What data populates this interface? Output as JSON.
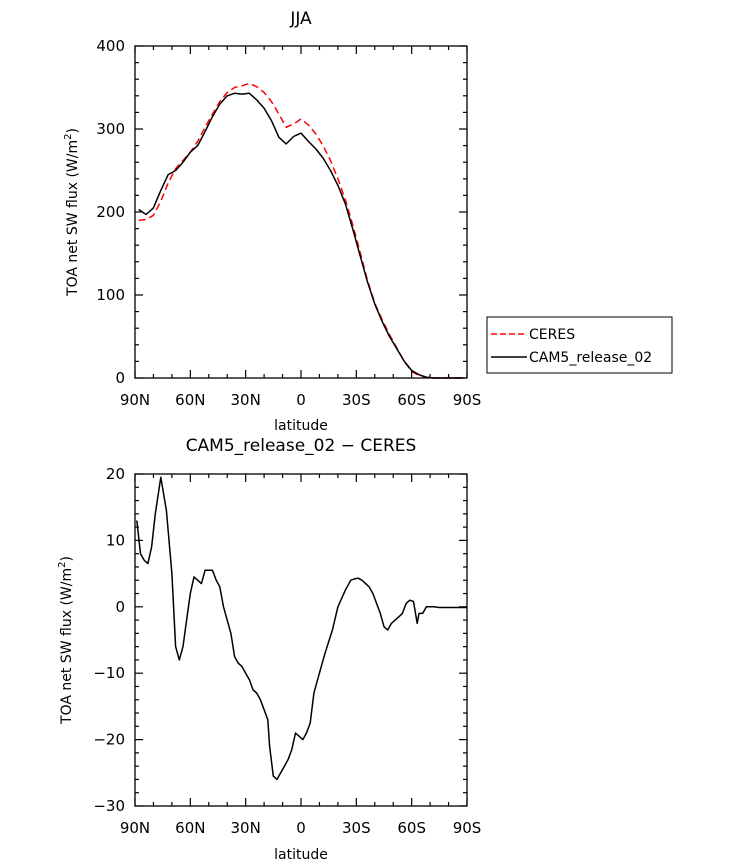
{
  "chart_data": [
    {
      "type": "line",
      "title": "JJA",
      "xlabel": "latitude",
      "ylabel_main": "TOA net SW flux (W/m",
      "ylabel_sup": "2",
      "ylabel_tail": ")",
      "xlim": [
        90,
        -90
      ],
      "ylim": [
        0,
        400
      ],
      "xticks": [
        90,
        60,
        30,
        0,
        -30,
        -60,
        -90
      ],
      "xtick_labels": [
        "90N",
        "60N",
        "30N",
        "0",
        "30S",
        "60S",
        "90S"
      ],
      "yticks": [
        0,
        100,
        200,
        300,
        400
      ],
      "ytick_labels": [
        "0",
        "100",
        "200",
        "300",
        "400"
      ],
      "legend": {
        "placement": "right",
        "entries": [
          {
            "label": "CERES",
            "color": "#ff0000",
            "dash": "dashed"
          },
          {
            "label": "CAM5_release_02",
            "color": "#000000",
            "dash": "solid"
          }
        ]
      },
      "series": [
        {
          "name": "CERES",
          "color": "#ff0000",
          "dash": "dashed",
          "x": [
            88,
            84,
            80,
            76,
            72,
            68,
            64,
            60,
            56,
            52,
            48,
            44,
            40,
            36,
            32,
            28,
            24,
            20,
            16,
            12,
            8,
            4,
            0,
            -4,
            -8,
            -12,
            -16,
            -20,
            -24,
            -28,
            -32,
            -36,
            -40,
            -44,
            -48,
            -52,
            -56,
            -60,
            -64,
            -68,
            -72,
            -76,
            -80,
            -84,
            -88
          ],
          "y": [
            190,
            191,
            196,
            213,
            235,
            252,
            262,
            272,
            285,
            302,
            318,
            333,
            344,
            350,
            352,
            355,
            351,
            344,
            333,
            318,
            302,
            306,
            312,
            305,
            294,
            280,
            262,
            240,
            215,
            185,
            152,
            118,
            90,
            70,
            52,
            36,
            20,
            8,
            3,
            1,
            0,
            0,
            0,
            0,
            0
          ]
        },
        {
          "name": "CAM5_release_02",
          "color": "#000000",
          "dash": "solid",
          "x": [
            88,
            84,
            80,
            76,
            72,
            68,
            64,
            60,
            56,
            52,
            48,
            44,
            40,
            36,
            32,
            28,
            24,
            20,
            16,
            12,
            8,
            4,
            0,
            -4,
            -8,
            -12,
            -16,
            -20,
            -24,
            -28,
            -32,
            -36,
            -40,
            -44,
            -48,
            -52,
            -56,
            -60,
            -64,
            -68,
            -72,
            -76,
            -80,
            -84,
            -88
          ],
          "y": [
            203,
            197,
            205,
            226,
            245,
            250,
            260,
            272,
            280,
            297,
            315,
            330,
            340,
            343,
            342,
            343,
            335,
            325,
            310,
            290,
            282,
            291,
            295,
            285,
            276,
            265,
            250,
            232,
            210,
            180,
            148,
            116,
            89,
            68,
            50,
            35,
            20,
            9,
            4,
            1,
            0,
            0,
            0,
            0,
            0
          ]
        }
      ]
    },
    {
      "type": "line",
      "title": "CAM5_release_02 − CERES",
      "xlabel": "latitude",
      "ylabel_main": "TOA net SW flux (W/m",
      "ylabel_sup": "2",
      "ylabel_tail": ")",
      "xlim": [
        90,
        -90
      ],
      "ylim": [
        -30,
        20
      ],
      "xticks": [
        90,
        60,
        30,
        0,
        -30,
        -60,
        -90
      ],
      "xtick_labels": [
        "90N",
        "60N",
        "30N",
        "0",
        "30S",
        "60S",
        "90S"
      ],
      "yticks": [
        -30,
        -20,
        -10,
        0,
        10,
        20
      ],
      "ytick_labels": [
        "−30",
        "−20",
        "−10",
        "0",
        "10",
        "20"
      ],
      "series": [
        {
          "color": "#000000",
          "dash": "solid",
          "x": [
            89,
            87,
            85,
            83,
            81,
            79,
            76,
            73,
            70,
            68,
            66,
            64,
            62,
            60,
            58,
            56,
            54,
            52,
            48,
            46,
            44,
            42,
            40,
            38,
            36,
            34,
            32,
            30,
            28,
            26,
            24,
            22,
            20,
            18,
            17,
            15,
            13,
            11,
            9,
            7,
            5,
            3,
            1,
            -1,
            -3,
            -5,
            -7,
            -10,
            -13,
            -17,
            -20,
            -24,
            -27,
            -29,
            -31,
            -33,
            -35,
            -37,
            -39,
            -41,
            -43,
            -45,
            -47,
            -49,
            -51,
            -53,
            -55,
            -57,
            -59,
            -61,
            -63,
            -64,
            -66,
            -68,
            -70,
            -72,
            -75,
            -78,
            -81,
            -84,
            -87,
            -90
          ],
          "y": [
            13,
            8,
            7,
            6.5,
            9,
            14,
            19.5,
            14.5,
            5,
            -6,
            -8,
            -6,
            -2,
            2,
            4.5,
            4,
            3.5,
            5.5,
            5.5,
            4,
            3,
            0,
            -2,
            -4,
            -7.5,
            -8.5,
            -9,
            -10,
            -11,
            -12.5,
            -13,
            -14,
            -15.5,
            -17,
            -21,
            -25.5,
            -26,
            -25,
            -24,
            -23,
            -21.5,
            -19,
            -19.5,
            -20,
            -19,
            -17.5,
            -13,
            -10,
            -7,
            -3.5,
            0,
            2.5,
            4,
            4.2,
            4.3,
            4,
            3.5,
            3,
            2,
            0.5,
            -1,
            -3,
            -3.5,
            -2.5,
            -2,
            -1.5,
            -1,
            0.5,
            1,
            0.8,
            -2.5,
            -1,
            -1,
            0,
            0,
            0,
            -0.1,
            -0.1,
            -0.1,
            -0.1,
            -0.1,
            -0.1
          ]
        }
      ]
    }
  ]
}
